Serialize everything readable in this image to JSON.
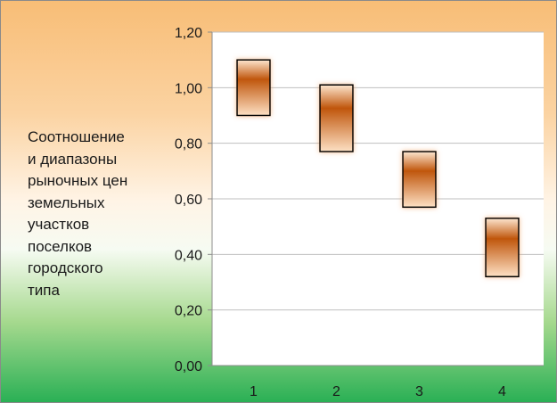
{
  "side_label": "Соотношение\nи диапазоны\nрыночных цен\nземельных\nучастков\nпоселков\nгородского\nтипа",
  "chart_data": {
    "type": "bar",
    "subtype": "floating-range",
    "categories": [
      "1",
      "2",
      "3",
      "4"
    ],
    "ranges": [
      {
        "low": 0.9,
        "high": 1.1
      },
      {
        "low": 0.77,
        "high": 1.01
      },
      {
        "low": 0.57,
        "high": 0.77
      },
      {
        "low": 0.32,
        "high": 0.53
      }
    ],
    "title": "",
    "xlabel": "",
    "ylabel": "",
    "ylim": [
      0,
      1.2
    ],
    "yticks": [
      "0,00",
      "0,20",
      "0,40",
      "0,60",
      "0,80",
      "1,00",
      "1,20"
    ],
    "ytick_values": [
      0,
      0.2,
      0.4,
      0.6,
      0.8,
      1.0,
      1.2
    ],
    "grid": true,
    "colors": {
      "bar_dark": "#c0560c",
      "bar_light": "#fde0c4",
      "plot_bg": "#ffffff",
      "grid": "#bfbfbf"
    }
  }
}
